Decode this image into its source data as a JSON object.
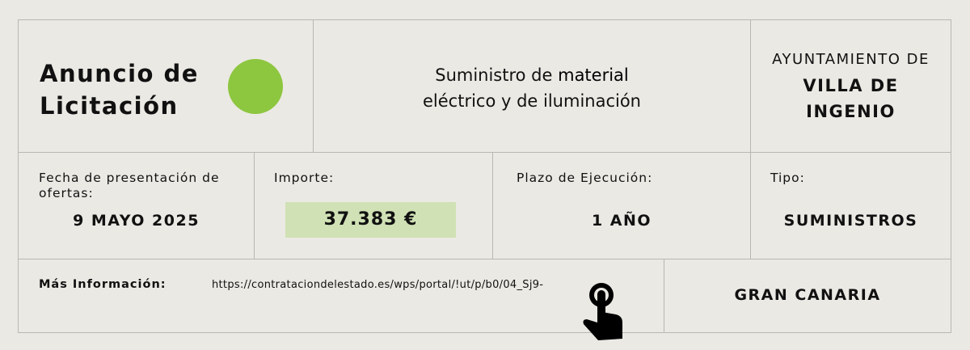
{
  "colors": {
    "accent_circle": "#8dc63f",
    "importe_bg": "#d0e1b5",
    "background": "#ebe9e4"
  },
  "header": {
    "title_line1": "Anuncio de",
    "title_line2": "Licitación",
    "subject_line1_pre": "Suministro de ",
    "subject_line1_bold": "material",
    "subject_line2": "eléctrico y de iluminación",
    "ayuntamiento_label": "AYUNTAMIENTO DE",
    "ayuntamiento_line1": "VILLA DE",
    "ayuntamiento_line2": "INGENIO"
  },
  "details": {
    "fecha_label": "Fecha de presentación de ofertas:",
    "fecha_value": "9 MAYO 2025",
    "importe_label": "Importe:",
    "importe_value": "37.383 €",
    "plazo_label": "Plazo de Ejecución:",
    "plazo_value": "1 AÑO",
    "tipo_label": "Tipo:",
    "tipo_value": "SUMINISTROS"
  },
  "footer": {
    "info_label": "Más Información:",
    "url": "https://contrataciondelestado.es/wps/portal/!ut/p/b0/04_Sj9-",
    "icon": "hand-pointer-icon",
    "region": "GRAN CANARIA"
  }
}
